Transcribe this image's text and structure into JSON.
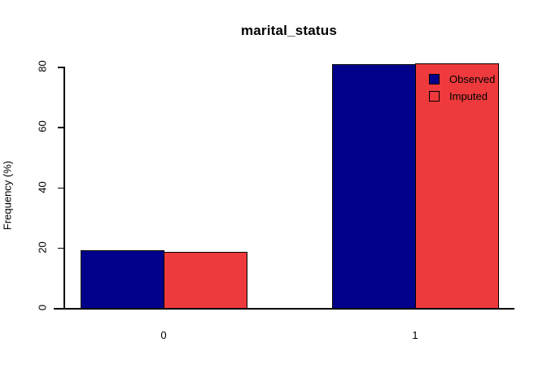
{
  "chart_data": {
    "type": "bar",
    "title": "marital_status",
    "xlabel": "",
    "ylabel": "Frequency (%)",
    "categories": [
      "0",
      "1"
    ],
    "series": [
      {
        "name": "Observed",
        "color": "#00008B",
        "values": [
          19.1,
          80.9
        ]
      },
      {
        "name": "Imputed",
        "color": "#EE3A3C",
        "values": [
          18.7,
          81.2
        ]
      }
    ],
    "ylim": [
      0,
      80
    ],
    "yticks": [
      0,
      20,
      40,
      60,
      80
    ],
    "grid": false,
    "legend_position": "top-right-inside",
    "bar_border_color": "#000000",
    "axis_color": "#000000",
    "background_color": "#FFFFFF"
  }
}
